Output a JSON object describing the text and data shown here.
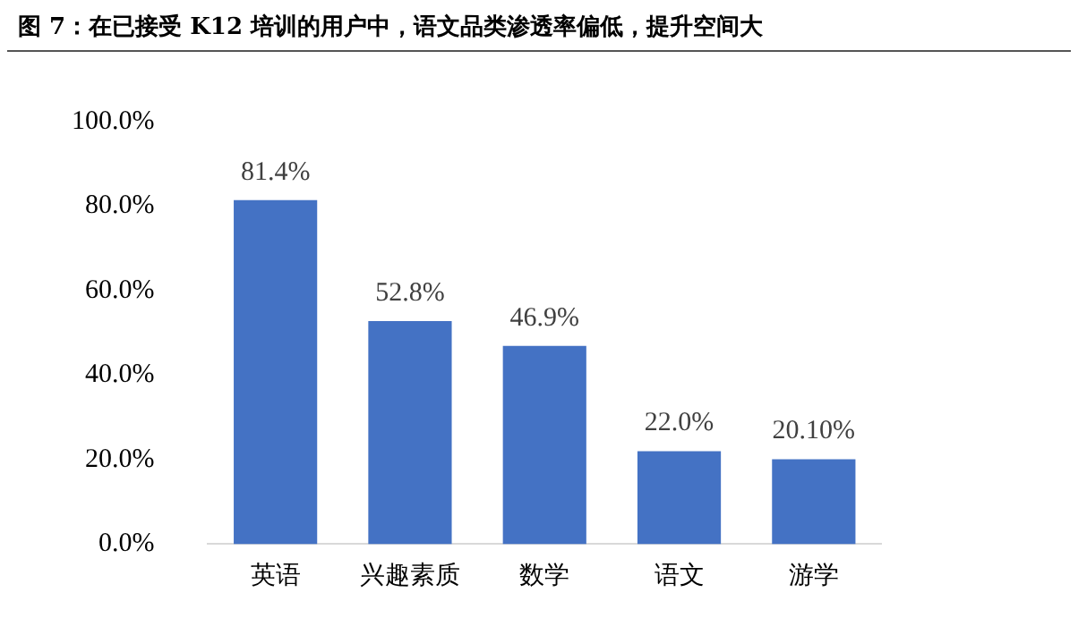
{
  "chart_data": {
    "type": "bar",
    "title": "图 7：在已接受 K12 培训的用户中，语文品类渗透率偏低，提升空间大",
    "categories": [
      "英语",
      "兴趣素质",
      "数学",
      "语文",
      "游学"
    ],
    "values": [
      81.4,
      52.8,
      46.9,
      22.0,
      20.1
    ],
    "value_labels": [
      "81.4%",
      "52.8%",
      "46.9%",
      "22.0%",
      "20.10%"
    ],
    "color": "#4472c4",
    "ylim": [
      0,
      100
    ],
    "yticks": [
      {
        "value": 0,
        "label": "0.0%"
      },
      {
        "value": 20,
        "label": "20.0%"
      },
      {
        "value": 40,
        "label": "40.0%"
      },
      {
        "value": 60,
        "label": "60.0%"
      },
      {
        "value": 80,
        "label": "80.0%"
      },
      {
        "value": 100,
        "label": "100.0%"
      }
    ],
    "grid": false,
    "legend": false
  }
}
